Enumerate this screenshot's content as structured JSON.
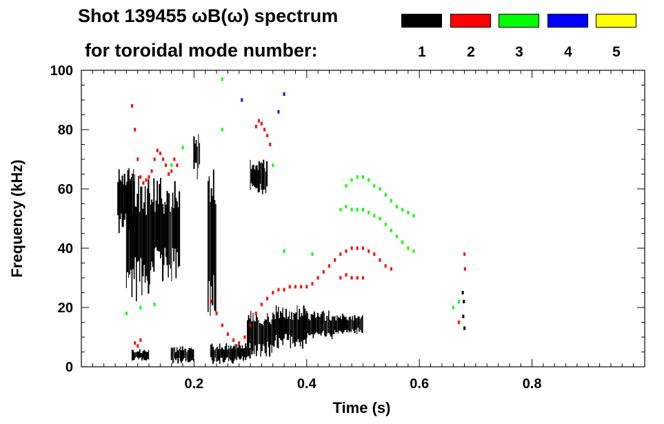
{
  "header": {
    "title_line1": "Shot 139455 ωB(ω) spectrum",
    "title_line2": "for toroidal mode number:"
  },
  "legend": [
    {
      "mode": "1",
      "color": "#000000"
    },
    {
      "mode": "2",
      "color": "#ff0000"
    },
    {
      "mode": "3",
      "color": "#00ff00"
    },
    {
      "mode": "4",
      "color": "#0000ff"
    },
    {
      "mode": "5",
      "color": "#ffff00"
    }
  ],
  "chart_data": {
    "type": "scatter",
    "title": "Shot 139455 ωB(ω) spectrum",
    "xlabel": "Time (s)",
    "ylabel": "Frequency (kHz)",
    "xlim": [
      0.0,
      1.0
    ],
    "ylim": [
      0,
      100
    ],
    "x_ticks": [
      0.2,
      0.4,
      0.6,
      0.8
    ],
    "y_ticks": [
      0,
      20,
      40,
      60,
      80,
      100
    ],
    "grid": false,
    "legend_position": "top-right",
    "series": [
      {
        "name": "1",
        "color": "#000000",
        "bands": [
          {
            "t0": 0.065,
            "t1": 0.095,
            "f_lo": 45,
            "f_hi": 68
          },
          {
            "t0": 0.08,
            "t1": 0.125,
            "f_lo": 22,
            "f_hi": 66
          },
          {
            "t0": 0.125,
            "t1": 0.175,
            "f_lo": 28,
            "f_hi": 64
          },
          {
            "t0": 0.09,
            "t1": 0.12,
            "f_lo": 2,
            "f_hi": 6
          },
          {
            "t0": 0.16,
            "t1": 0.2,
            "f_lo": 1,
            "f_hi": 7
          },
          {
            "t0": 0.2,
            "t1": 0.21,
            "f_lo": 63,
            "f_hi": 80
          },
          {
            "t0": 0.225,
            "t1": 0.24,
            "f_lo": 16,
            "f_hi": 68
          },
          {
            "t0": 0.23,
            "t1": 0.275,
            "f_lo": 1,
            "f_hi": 8
          },
          {
            "t0": 0.27,
            "t1": 0.3,
            "f_lo": 2,
            "f_hi": 8
          },
          {
            "t0": 0.3,
            "t1": 0.33,
            "f_lo": 58,
            "f_hi": 70
          },
          {
            "t0": 0.295,
            "t1": 0.34,
            "f_lo": 3,
            "f_hi": 19
          },
          {
            "t0": 0.34,
            "t1": 0.4,
            "f_lo": 6,
            "f_hi": 21
          },
          {
            "t0": 0.4,
            "t1": 0.45,
            "f_lo": 9,
            "f_hi": 19
          },
          {
            "t0": 0.45,
            "t1": 0.5,
            "f_lo": 11,
            "f_hi": 18
          }
        ],
        "points": [
          [
            0.678,
            17
          ],
          [
            0.679,
            22
          ],
          [
            0.68,
            13
          ],
          [
            0.677,
            25
          ]
        ]
      },
      {
        "name": "2",
        "color": "#ff0000",
        "points": [
          [
            0.09,
            88
          ],
          [
            0.095,
            80
          ],
          [
            0.1,
            70
          ],
          [
            0.105,
            64
          ],
          [
            0.11,
            62
          ],
          [
            0.115,
            63
          ],
          [
            0.12,
            64
          ],
          [
            0.125,
            66
          ],
          [
            0.13,
            70
          ],
          [
            0.135,
            73
          ],
          [
            0.14,
            72
          ],
          [
            0.145,
            70
          ],
          [
            0.15,
            68
          ],
          [
            0.155,
            65
          ],
          [
            0.16,
            66
          ],
          [
            0.165,
            70
          ],
          [
            0.17,
            68
          ],
          [
            0.095,
            8
          ],
          [
            0.1,
            7
          ],
          [
            0.105,
            9
          ],
          [
            0.23,
            22
          ],
          [
            0.24,
            18
          ],
          [
            0.25,
            14
          ],
          [
            0.26,
            11
          ],
          [
            0.27,
            9
          ],
          [
            0.28,
            8
          ],
          [
            0.29,
            10
          ],
          [
            0.3,
            14
          ],
          [
            0.31,
            18
          ],
          [
            0.32,
            21
          ],
          [
            0.33,
            23
          ],
          [
            0.34,
            25
          ],
          [
            0.35,
            26
          ],
          [
            0.36,
            26
          ],
          [
            0.37,
            27
          ],
          [
            0.38,
            27
          ],
          [
            0.39,
            27
          ],
          [
            0.4,
            27
          ],
          [
            0.41,
            28
          ],
          [
            0.42,
            30
          ],
          [
            0.43,
            32
          ],
          [
            0.44,
            34
          ],
          [
            0.45,
            36
          ],
          [
            0.46,
            38
          ],
          [
            0.47,
            39
          ],
          [
            0.48,
            40
          ],
          [
            0.49,
            40
          ],
          [
            0.5,
            40
          ],
          [
            0.51,
            39
          ],
          [
            0.52,
            38
          ],
          [
            0.53,
            36
          ],
          [
            0.54,
            34
          ],
          [
            0.55,
            33
          ],
          [
            0.46,
            30
          ],
          [
            0.47,
            31
          ],
          [
            0.48,
            30
          ],
          [
            0.49,
            30
          ],
          [
            0.5,
            30
          ],
          [
            0.31,
            81
          ],
          [
            0.315,
            83
          ],
          [
            0.32,
            82
          ],
          [
            0.325,
            80
          ],
          [
            0.33,
            78
          ],
          [
            0.335,
            75
          ],
          [
            0.67,
            15
          ],
          [
            0.68,
            38
          ],
          [
            0.681,
            33
          ]
        ]
      },
      {
        "name": "3",
        "color": "#00ff00",
        "points": [
          [
            0.08,
            18
          ],
          [
            0.105,
            20
          ],
          [
            0.13,
            21
          ],
          [
            0.16,
            68
          ],
          [
            0.18,
            74
          ],
          [
            0.25,
            97
          ],
          [
            0.25,
            80
          ],
          [
            0.34,
            68
          ],
          [
            0.36,
            39
          ],
          [
            0.41,
            38
          ],
          [
            0.46,
            53
          ],
          [
            0.47,
            54
          ],
          [
            0.48,
            53
          ],
          [
            0.49,
            53
          ],
          [
            0.5,
            53
          ],
          [
            0.51,
            52
          ],
          [
            0.52,
            51
          ],
          [
            0.53,
            50
          ],
          [
            0.54,
            48
          ],
          [
            0.55,
            46
          ],
          [
            0.56,
            44
          ],
          [
            0.57,
            42
          ],
          [
            0.58,
            40
          ],
          [
            0.59,
            39
          ],
          [
            0.47,
            61
          ],
          [
            0.48,
            63
          ],
          [
            0.49,
            64
          ],
          [
            0.5,
            64
          ],
          [
            0.51,
            63
          ],
          [
            0.52,
            61
          ],
          [
            0.53,
            60
          ],
          [
            0.54,
            58
          ],
          [
            0.55,
            56
          ],
          [
            0.56,
            54
          ],
          [
            0.57,
            53
          ],
          [
            0.58,
            52
          ],
          [
            0.59,
            51
          ],
          [
            0.66,
            20
          ],
          [
            0.67,
            22
          ]
        ]
      },
      {
        "name": "4",
        "color": "#0000ff",
        "points": [
          [
            0.285,
            90
          ],
          [
            0.36,
            92
          ],
          [
            0.35,
            86
          ]
        ]
      },
      {
        "name": "5",
        "color": "#ffff00",
        "points": []
      }
    ]
  }
}
